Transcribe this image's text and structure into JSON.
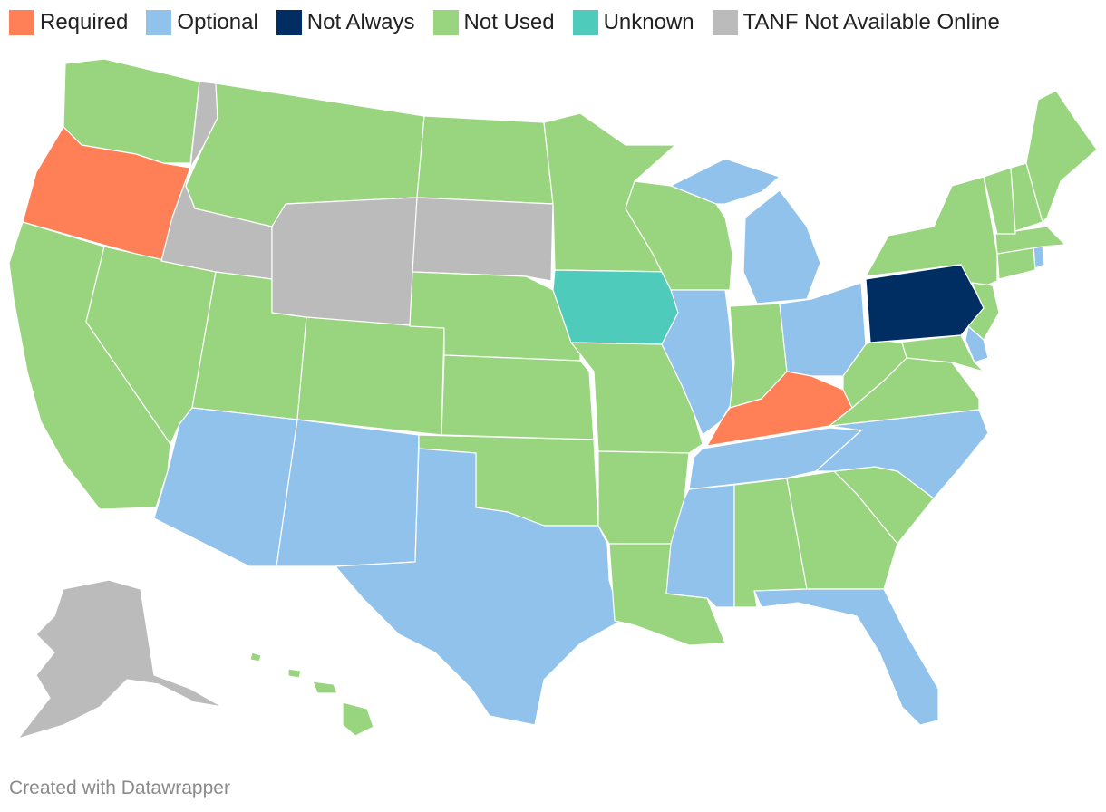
{
  "legend": [
    {
      "label": "Required",
      "color": "#ff7f57"
    },
    {
      "label": "Optional",
      "color": "#90c2eb"
    },
    {
      "label": "Not Always",
      "color": "#002d62"
    },
    {
      "label": "Not Used",
      "color": "#99d57e"
    },
    {
      "label": "Unknown",
      "color": "#4ecbba"
    },
    {
      "label": "TANF Not Available Online",
      "color": "#bbbbbb"
    }
  ],
  "states_by_category": {
    "Required": [
      "OR",
      "KY"
    ],
    "Optional": [
      "AZ",
      "NM",
      "TX",
      "MS",
      "FL",
      "IL",
      "MI",
      "OH",
      "TN",
      "NC",
      "DE",
      "RI"
    ],
    "Not Always": [
      "PA"
    ],
    "Not Used": [
      "WA",
      "CA",
      "NV",
      "UT",
      "MT",
      "CO",
      "ND",
      "NE",
      "KS",
      "OK",
      "MN",
      "WI",
      "MO",
      "AR",
      "LA",
      "AL",
      "GA",
      "SC",
      "IN",
      "WV",
      "VA",
      "MD",
      "NJ",
      "NY",
      "CT",
      "MA",
      "VT",
      "NH",
      "ME",
      "HI"
    ],
    "Unknown": [
      "IA"
    ],
    "TANF Not Available Online": [
      "ID",
      "WY",
      "SD",
      "AK"
    ]
  },
  "footer": "Created with Datawrapper"
}
